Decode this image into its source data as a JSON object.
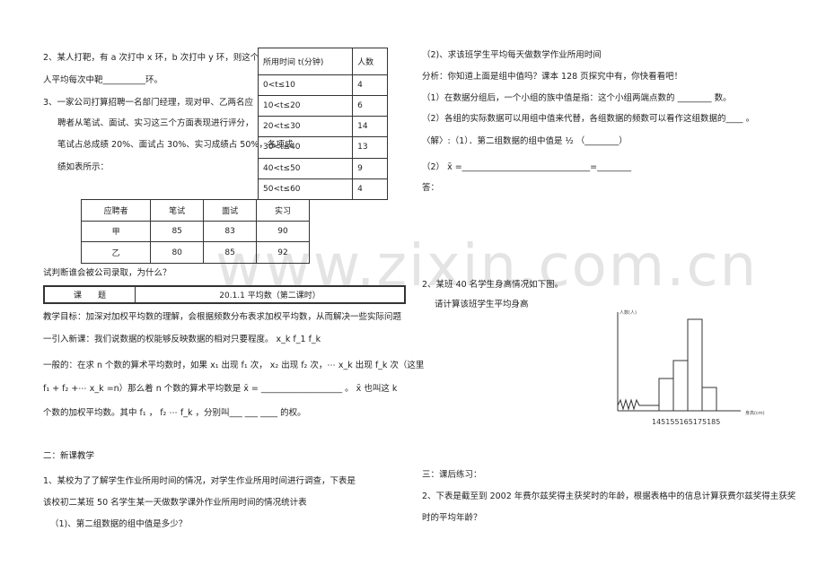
{
  "left": {
    "lines": [
      "2、某人打靶，有 a 次打中 x 环，b 次打中 y 环，则这个",
      "人平均每次中靶__________环。",
      "3、一家公司打算招聘一名部门经理，现对甲、乙两名应",
      "聘者从笔试、面试、实习这三个方面表现进行评分，",
      "笔试占总成绩 20%、面试占 30%、实习成绩占 50%，各项成",
      "绩如表所示：",
      "试判断谁会被公司录取，为什么？",
      "教学目标：加深对加权平均数的理解，会根据频数分布表求加权平均数，从而解决一些实际问题",
      "一引入新课：我们说数据的权能够反映数据的相对只要程度。 x_k  f_1  f_k",
      "一般的：在求 n 个数的算术平均数时，如果 x₁ 出现 f₁ 次， x₂ 出现 f₂ 次，⋯ x_k 出现 f_k 次（这里",
      "f₁ + f₂ +⋯ x_k =n）那么着 n 个数的算术平均数是 x̄ = ___________________ 。 x̄ 也叫这 k",
      "个数的加权平均数。其中 f₁ ，  f₂ ⋯ f_k ，分别叫___  ___  ____  的权。",
      "二：新课教学",
      "1、某校为了了解学生作业所用时间的情况，对学生作业所用时间进行调查，下表是",
      "该校初二某班 50 名学生某一天做数学课外作业所用时间的情况统计表",
      "（1)、第二组数据的组中值是多少？"
    ]
  },
  "time_table": {
    "header": [
      "所用时间 t(分钟)",
      "人数"
    ],
    "rows": [
      [
        "0<t≤10",
        4
      ],
      [
        "10<t≤20",
        6
      ],
      [
        "20<t≤30",
        14
      ],
      [
        "30<t≤40",
        13
      ],
      [
        "40<t≤50",
        9
      ],
      [
        "50<t≤60",
        4
      ]
    ]
  },
  "score_table": {
    "header": [
      "应聘者",
      "笔试",
      "面试",
      "实习"
    ],
    "rows": [
      [
        "甲",
        85,
        83,
        90
      ],
      [
        "乙",
        80,
        85,
        92
      ]
    ]
  },
  "topic_box": {
    "label": "课　　题",
    "value": "20.1.1 平均数（第二课时）"
  },
  "right": {
    "lines": [
      "（2)、求该班学生平均每天做数学作业所用时间",
      "分析：你知道上面是组中值吗？课本 128 页探究中有，你快看看吧！",
      "（1）在数据分组后，一个小组的族中值是指：这个小组两端点数的 ________ 数。",
      "（2）各组的实际数据可以用组中值来代替，各组数据的频数可以看作这组数据的____ 。",
      "〈解〉:（1）．第二组数据的组中值是 ½ （________）",
      "（2） x̄ =______________________________=________",
      "答：",
      "2、某班 40 名学生身高情况如下图。",
      "请计算该班学生平均身高",
      "三：课后练习：",
      "2、下表是截至到 2002 年费尔兹奖得主获奖时的年龄，根据表格中的信息计算获费尔兹奖得主获奖",
      "时的平均年龄？"
    ]
  },
  "histogram": {
    "y_label": "人数(人)",
    "x_label": "身高(cm)",
    "x_ticks": "145155165175185"
  },
  "watermark": "www.zixin.com.cn"
}
